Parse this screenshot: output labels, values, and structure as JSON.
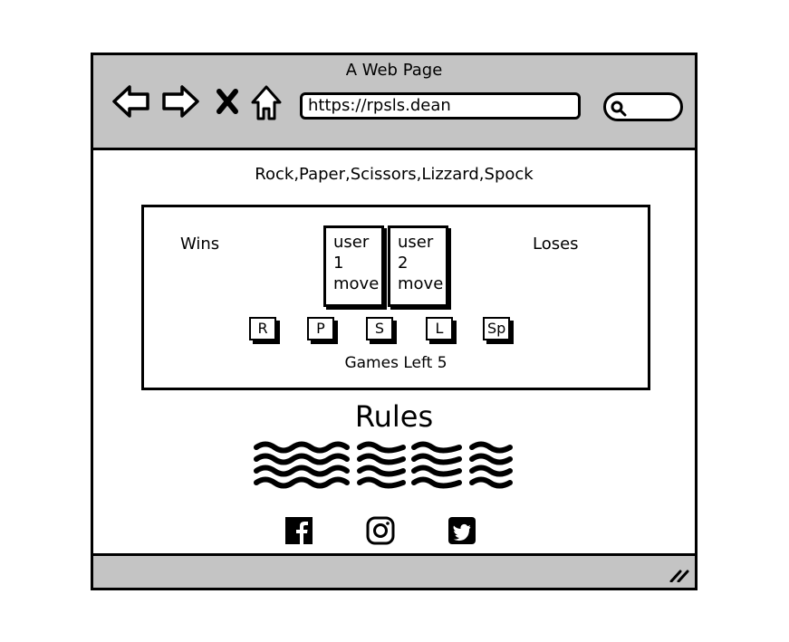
{
  "window": {
    "title": "A Web Page"
  },
  "browser": {
    "url": "https://rpsls.dean",
    "nav_icons": [
      "back-arrow-icon",
      "forward-arrow-icon",
      "close-x-icon",
      "home-icon"
    ],
    "search_icon": "search-icon"
  },
  "page": {
    "title": "Rock,Paper,Scissors,Lizzard,Spock",
    "game": {
      "wins_label": "Wins",
      "loses_label": "Loses",
      "user1_move": "user\n1\nmove",
      "user2_move": "user\n2\nmove",
      "buttons": [
        "R",
        "P",
        "S",
        "L",
        "Sp"
      ],
      "games_left": "Games Left 5"
    },
    "rules_heading": "Rules",
    "social_icons": [
      "facebook-icon",
      "instagram-icon",
      "twitter-icon"
    ]
  },
  "colors": {
    "chrome": "#c4c4c4",
    "ink": "#000000",
    "background": "#ffffff"
  }
}
